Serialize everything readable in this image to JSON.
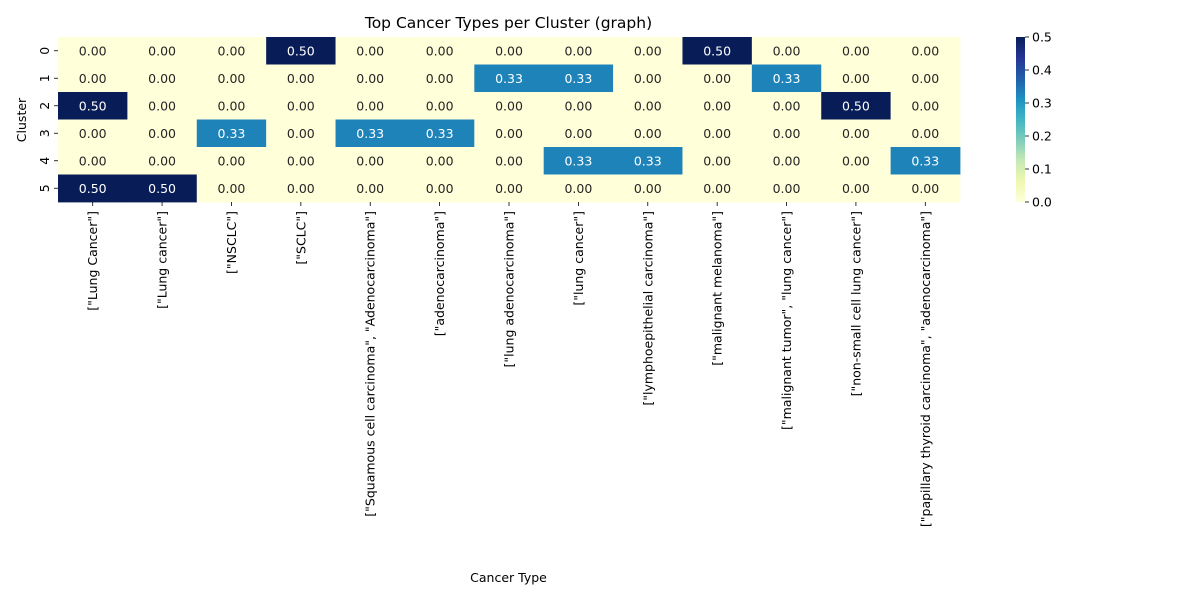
{
  "chart_data": {
    "type": "heatmap",
    "title": "Top Cancer Types per Cluster (graph)",
    "xlabel": "Cancer Type",
    "ylabel": "Cluster",
    "columns": [
      "[\"Lung Cancer\"]",
      "[\"Lung cancer\"]",
      "[\"NSCLC\"]",
      "[\"SCLC\"]",
      "[\"Squamous cell carcinoma\", \"Adenocarcinoma\"]",
      "[\"adenocarcinoma\"]",
      "[\"lung adenocarcinoma\"]",
      "[\"lung cancer\"]",
      "[\"lymphoepithelial carcinoma\"]",
      "[\"malignant melanoma\"]",
      "[\"malignant tumor\", \"lung cancer\"]",
      "[\"non-small cell lung cancer\"]",
      "[\"papillary thyroid carcinoma\", \"adenocarcinoma\"]"
    ],
    "rows": [
      "0",
      "1",
      "2",
      "3",
      "4",
      "5"
    ],
    "values": [
      [
        0.0,
        0.0,
        0.0,
        0.5,
        0.0,
        0.0,
        0.0,
        0.0,
        0.0,
        0.5,
        0.0,
        0.0,
        0.0
      ],
      [
        0.0,
        0.0,
        0.0,
        0.0,
        0.0,
        0.0,
        0.33,
        0.33,
        0.0,
        0.0,
        0.33,
        0.0,
        0.0
      ],
      [
        0.5,
        0.0,
        0.0,
        0.0,
        0.0,
        0.0,
        0.0,
        0.0,
        0.0,
        0.0,
        0.0,
        0.5,
        0.0
      ],
      [
        0.0,
        0.0,
        0.33,
        0.0,
        0.33,
        0.33,
        0.0,
        0.0,
        0.0,
        0.0,
        0.0,
        0.0,
        0.0
      ],
      [
        0.0,
        0.0,
        0.0,
        0.0,
        0.0,
        0.0,
        0.0,
        0.33,
        0.33,
        0.0,
        0.0,
        0.0,
        0.33
      ],
      [
        0.5,
        0.5,
        0.0,
        0.0,
        0.0,
        0.0,
        0.0,
        0.0,
        0.0,
        0.0,
        0.0,
        0.0,
        0.0
      ]
    ],
    "value_format": "0.00",
    "colormap": "YlGnBu",
    "vmin": 0.0,
    "vmax": 0.5,
    "colorbar_ticks": [
      "0.0",
      "0.1",
      "0.2",
      "0.3",
      "0.4",
      "0.5"
    ],
    "colors": {
      "low": "#ffffd9",
      "mid": "#2c7fb8",
      "high": "#081d58",
      "text_light": "#ffffff",
      "text_dark": "#262626"
    }
  }
}
